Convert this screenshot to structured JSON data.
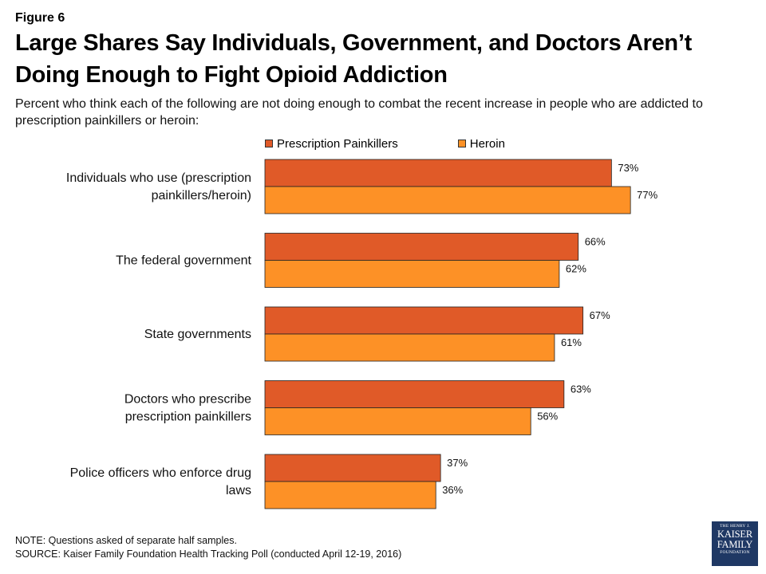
{
  "figure_label": "Figure 6",
  "title": "Large Shares Say Individuals, Government, and Doctors Aren’t Doing Enough to Fight Opioid Addiction",
  "subtitle": "Percent who think each of the following are not doing enough to combat the recent increase in people who are addicted to prescription painkillers or heroin:",
  "colors": {
    "prescription": "#e05a28",
    "heroin": "#fd9126"
  },
  "chart_data": {
    "type": "bar",
    "orientation": "horizontal",
    "categories": [
      [
        "Individuals who use (prescription",
        "painkillers/heroin)"
      ],
      [
        "The federal government"
      ],
      [
        "State governments"
      ],
      [
        "Doctors who prescribe",
        "prescription painkillers"
      ],
      [
        "Police officers who enforce drug",
        "laws"
      ]
    ],
    "series": [
      {
        "name": "Prescription Painkillers",
        "values": [
          73,
          66,
          67,
          63,
          37
        ]
      },
      {
        "name": "Heroin",
        "values": [
          77,
          62,
          61,
          56,
          36
        ]
      }
    ],
    "value_suffix": "%",
    "xlim": [
      0,
      100
    ],
    "legend_position": "top",
    "grid": false
  },
  "notes": {
    "note": "NOTE: Questions asked of separate half samples.",
    "source": "SOURCE: Kaiser Family Foundation Health Tracking Poll (conducted April 12-19, 2016)"
  },
  "logo": {
    "line1": "THE HENRY J.",
    "line2": "KAISER",
    "line3": "FAMILY",
    "line4": "FOUNDATION"
  }
}
